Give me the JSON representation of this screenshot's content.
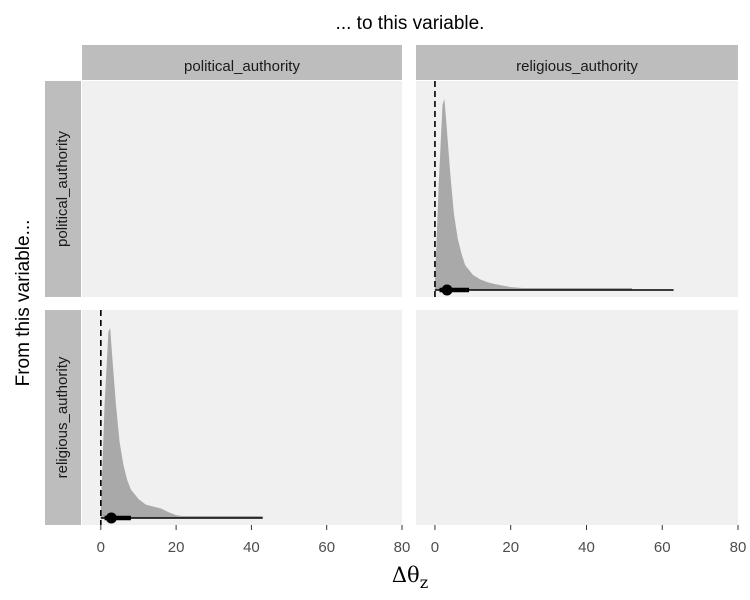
{
  "chart_data": {
    "type": "area",
    "facet_layout": "2x2 grid",
    "column_title": "... to this variable.",
    "row_title": "From this variable...",
    "column_strips": [
      "political_authority",
      "religious_authority"
    ],
    "row_strips": [
      "political_authority",
      "religious_authority"
    ],
    "xlabel": "Δθ",
    "xlabel_subscript": "z",
    "xlim": [
      -5,
      80
    ],
    "x_ticks": [
      0,
      20,
      40,
      60,
      80
    ],
    "x_tick_labels": [
      "0",
      "20",
      "40",
      "60",
      "80"
    ],
    "reference_line_x": 0,
    "panel_background": "#f0f0f0",
    "strip_background": "#bdbdbd",
    "density_color": "#a9a9a9",
    "panels": [
      {
        "row": "political_authority",
        "col": "religious_authority",
        "density_x": [
          0,
          1,
          2,
          2.5,
          3,
          4,
          5,
          6,
          7,
          8,
          10,
          12,
          14,
          16,
          20,
          25,
          30
        ],
        "density_y": [
          0.03,
          0.55,
          0.97,
          1.0,
          0.88,
          0.62,
          0.4,
          0.27,
          0.19,
          0.13,
          0.08,
          0.055,
          0.04,
          0.03,
          0.015,
          0.008,
          0.0
        ],
        "tail_max": 52,
        "point_estimate": 3.2,
        "inner_interval": [
          1.2,
          9
        ],
        "outer_interval": [
          0,
          63
        ]
      },
      {
        "row": "religious_authority",
        "col": "political_authority",
        "density_x": [
          0,
          1,
          2,
          2.5,
          3,
          4,
          5,
          6,
          7,
          8,
          10,
          12,
          14,
          16,
          18,
          20,
          25
        ],
        "density_y": [
          0.03,
          0.6,
          0.98,
          1.0,
          0.86,
          0.6,
          0.4,
          0.28,
          0.2,
          0.15,
          0.1,
          0.07,
          0.06,
          0.05,
          0.03,
          0.015,
          0.0
        ],
        "tail_max": 43,
        "point_estimate": 2.8,
        "inner_interval": [
          1.0,
          8
        ],
        "outer_interval": [
          0,
          43
        ]
      }
    ]
  }
}
